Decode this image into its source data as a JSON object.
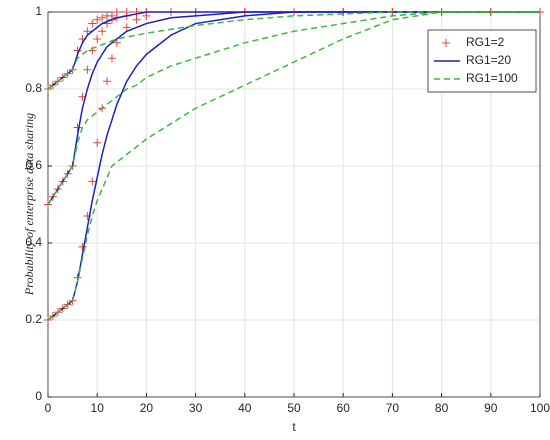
{
  "chart_data": {
    "type": "line",
    "x_label": "t",
    "y_label": "Probability of enterprise data sharing",
    "x": [
      0,
      1,
      2,
      3,
      4,
      5,
      6,
      7,
      8,
      9,
      10,
      11,
      12,
      13,
      14,
      16,
      18,
      20,
      25,
      30,
      40,
      50,
      60,
      70,
      80,
      90,
      100
    ],
    "series": [
      {
        "name": "RG1=2",
        "color": "#e8423a",
        "style": "marker",
        "lines": [
          [
            0.2,
            0.21,
            0.22,
            0.23,
            0.24,
            0.25,
            0.31,
            0.39,
            0.47,
            0.56,
            0.66,
            0.75,
            0.82,
            0.88,
            0.92,
            0.96,
            0.98,
            0.99,
            1,
            1,
            1,
            1,
            1,
            1,
            1,
            1,
            1
          ],
          [
            0.5,
            0.52,
            0.54,
            0.56,
            0.58,
            0.6,
            0.7,
            0.78,
            0.85,
            0.9,
            0.93,
            0.95,
            0.97,
            0.98,
            0.985,
            0.99,
            1,
            1,
            1,
            1,
            1,
            1,
            1,
            1,
            1,
            1,
            1
          ],
          [
            0.8,
            0.81,
            0.82,
            0.83,
            0.84,
            0.85,
            0.9,
            0.93,
            0.95,
            0.97,
            0.98,
            0.985,
            0.99,
            0.99,
            1,
            1,
            1,
            1,
            1,
            1,
            1,
            1,
            1,
            1,
            1,
            1,
            1
          ]
        ]
      },
      {
        "name": "RG1=20",
        "color": "#1f1fc2",
        "style": "solid",
        "lines": [
          [
            0.2,
            0.21,
            0.22,
            0.23,
            0.24,
            0.25,
            0.3,
            0.37,
            0.44,
            0.51,
            0.57,
            0.63,
            0.68,
            0.72,
            0.76,
            0.82,
            0.86,
            0.89,
            0.94,
            0.97,
            0.99,
            1,
            1,
            1,
            1,
            1,
            1
          ],
          [
            0.5,
            0.52,
            0.54,
            0.56,
            0.58,
            0.6,
            0.68,
            0.75,
            0.8,
            0.84,
            0.87,
            0.89,
            0.91,
            0.92,
            0.93,
            0.95,
            0.96,
            0.97,
            0.985,
            0.99,
            1,
            1,
            1,
            1,
            1,
            1,
            1
          ],
          [
            0.8,
            0.81,
            0.82,
            0.83,
            0.84,
            0.85,
            0.89,
            0.92,
            0.94,
            0.95,
            0.96,
            0.97,
            0.975,
            0.98,
            0.985,
            0.99,
            0.995,
            1,
            1,
            1,
            1,
            1,
            1,
            1,
            1,
            1,
            1
          ]
        ]
      },
      {
        "name": "RG1=100",
        "color": "#3cb83c",
        "style": "dashed",
        "lines": [
          [
            0.2,
            0.21,
            0.22,
            0.23,
            0.24,
            0.25,
            0.3,
            0.36,
            0.42,
            0.47,
            0.51,
            0.54,
            0.57,
            0.6,
            0.61,
            0.63,
            0.65,
            0.67,
            0.71,
            0.75,
            0.81,
            0.87,
            0.93,
            0.98,
            1,
            1,
            1
          ],
          [
            0.5,
            0.52,
            0.54,
            0.56,
            0.58,
            0.6,
            0.66,
            0.7,
            0.72,
            0.73,
            0.74,
            0.75,
            0.76,
            0.77,
            0.78,
            0.8,
            0.81,
            0.83,
            0.86,
            0.88,
            0.92,
            0.95,
            0.97,
            0.99,
            1,
            1,
            1
          ],
          [
            0.8,
            0.81,
            0.82,
            0.83,
            0.84,
            0.85,
            0.88,
            0.89,
            0.9,
            0.905,
            0.91,
            0.915,
            0.92,
            0.925,
            0.93,
            0.935,
            0.94,
            0.945,
            0.955,
            0.965,
            0.98,
            0.99,
            0.995,
            1,
            1,
            1,
            1
          ]
        ]
      }
    ],
    "xlim": [
      0,
      100
    ],
    "xticks": [
      0,
      10,
      20,
      30,
      40,
      50,
      60,
      70,
      80,
      90,
      100
    ],
    "ylim": [
      0,
      1
    ],
    "yticks": [
      0,
      0.2,
      0.4,
      0.6,
      0.8,
      1
    ],
    "grid": true,
    "legend": "upper-right"
  }
}
